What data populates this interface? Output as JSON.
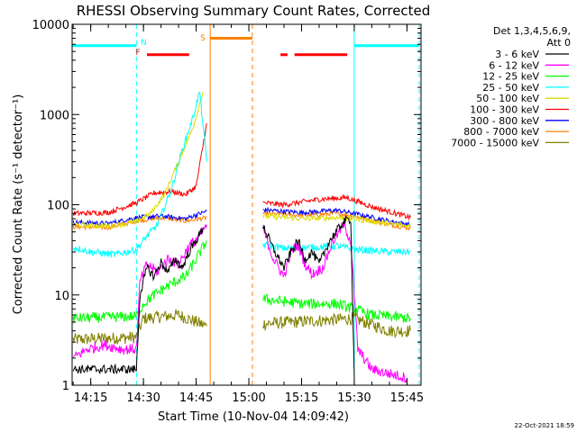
{
  "chart_data": {
    "type": "line",
    "title": "RHESSI Observing Summary Count Rates, Corrected",
    "xlabel": "Start Time (10-Nov-04 14:09:42)",
    "ylabel": "Corrected Count Rate (s⁻¹ detector⁻¹)",
    "y_scale": "log",
    "ylim": [
      1,
      10000
    ],
    "xlim": [
      "14:09:42",
      "15:49:00"
    ],
    "x_ticks": [
      "14:15",
      "14:30",
      "14:45",
      "15:00",
      "15:15",
      "15:30",
      "15:45"
    ],
    "y_ticks": [
      "1",
      "10",
      "100",
      "1000",
      "10000"
    ],
    "legend_title": [
      "Det 1,3,4,5,6,9,",
      "Att 0"
    ],
    "legend_position": "right",
    "footer_date": "22-Oct-2021 18:59",
    "colors": {
      "black": "#000000",
      "magenta": "#ff00ff",
      "green": "#00ff00",
      "cyan": "#00ffff",
      "yellow": "#dddd00",
      "red": "#ff0000",
      "blue": "#0000ff",
      "orange": "#ff7f00",
      "olive": "#808000",
      "gap": "#ff7f00",
      "night": "#00ffff",
      "saa": "#ff7f00",
      "flare": "#ff0000"
    },
    "annotations": [
      {
        "label": "N",
        "kind": "night",
        "color": "#00ffff",
        "x": "14:28:00"
      },
      {
        "label": "F",
        "kind": "flare",
        "color": "#ff0000",
        "x": "14:30:00"
      },
      {
        "label": "S",
        "kind": "saa",
        "color": "#ff7f00",
        "x": "14:49:00"
      }
    ],
    "flag_bars": [
      {
        "kind": "night",
        "color": "#00ffff",
        "y": 5800,
        "segments": [
          [
            "14:09:42",
            "14:28:00"
          ],
          [
            "15:30:00",
            "15:48:30"
          ]
        ]
      },
      {
        "kind": "flare",
        "color": "#ff0000",
        "y": 4600,
        "segments": [
          [
            "14:31:00",
            "14:43:00"
          ],
          [
            "15:09:00",
            "15:11:00"
          ],
          [
            "15:13:00",
            "15:28:00"
          ]
        ]
      },
      {
        "kind": "saa",
        "color": "#ff7f00",
        "y": 7000,
        "segments": [
          [
            "14:49:00",
            "15:01:00"
          ]
        ]
      }
    ],
    "vertical_markers": [
      {
        "x": "14:28:00",
        "color": "#00ffff",
        "style": "dashed"
      },
      {
        "x": "14:49:00",
        "color": "#ff7f00",
        "style": "solid"
      },
      {
        "x": "15:01:00",
        "color": "#ff7f00",
        "style": "dashed"
      },
      {
        "x": "15:30:00",
        "color": "#00ffff",
        "style": "solid"
      },
      {
        "x": "15:48:30",
        "color": "#00ffff",
        "style": "dashed"
      }
    ],
    "series": [
      {
        "name": "3 - 6 keV",
        "color": "#000000",
        "noise": 0.05,
        "segments": [
          [
            [
              "14:10:00",
              1.5
            ],
            [
              "14:28:00",
              1.5
            ],
            [
              "14:29:00",
              10
            ],
            [
              "14:31:00",
              20
            ],
            [
              "14:33:00",
              16
            ],
            [
              "14:35:00",
              23
            ],
            [
              "14:37:00",
              18
            ],
            [
              "14:39:00",
              25
            ],
            [
              "14:41:00",
              20
            ],
            [
              "14:43:00",
              30
            ],
            [
              "14:45:00",
              40
            ],
            [
              "14:47:00",
              55
            ]
          ],
          [
            [
              "15:04:00",
              60
            ],
            [
              "15:07:00",
              32
            ],
            [
              "15:10:00",
              20
            ],
            [
              "15:12:00",
              30
            ],
            [
              "15:14:00",
              40
            ],
            [
              "15:16:00",
              25
            ],
            [
              "15:18:00",
              30
            ],
            [
              "15:20:00",
              22
            ],
            [
              "15:23:00",
              40
            ],
            [
              "15:27:00",
              65
            ],
            [
              "15:29:00",
              70
            ],
            [
              "15:30:00",
              1.2
            ]
          ]
        ]
      },
      {
        "name": "6 - 12 keV",
        "color": "#ff00ff",
        "noise": 0.06,
        "segments": [
          [
            [
              "14:10:00",
              2
            ],
            [
              "14:14:00",
              2.5
            ],
            [
              "14:19:00",
              2.8
            ],
            [
              "14:24:00",
              2.5
            ],
            [
              "14:28:00",
              2.5
            ],
            [
              "14:29:00",
              14
            ],
            [
              "14:31:00",
              22
            ],
            [
              "14:34:00",
              18
            ],
            [
              "14:37:00",
              25
            ],
            [
              "14:40:00",
              22
            ],
            [
              "14:43:00",
              35
            ],
            [
              "14:46:00",
              45
            ],
            [
              "14:48:00",
              60
            ]
          ],
          [
            [
              "15:04:00",
              55
            ],
            [
              "15:07:00",
              25
            ],
            [
              "15:10:00",
              16
            ],
            [
              "15:12:00",
              30
            ],
            [
              "15:14:00",
              36
            ],
            [
              "15:16:00",
              22
            ],
            [
              "15:18:00",
              17
            ],
            [
              "15:21:00",
              20
            ],
            [
              "15:24:00",
              40
            ],
            [
              "15:27:00",
              60
            ],
            [
              "15:29:00",
              40
            ],
            [
              "15:31:00",
              2.5
            ],
            [
              "15:35:00",
              1.5
            ],
            [
              "15:45:00",
              1.2
            ]
          ]
        ]
      },
      {
        "name": "12 - 25 keV",
        "color": "#00ff00",
        "noise": 0.06,
        "segments": [
          [
            [
              "14:10:00",
              5.5
            ],
            [
              "14:28:00",
              5.8
            ],
            [
              "14:30:00",
              8
            ],
            [
              "14:33:00",
              10
            ],
            [
              "14:36:00",
              12
            ],
            [
              "14:39:00",
              14
            ],
            [
              "14:42:00",
              16
            ],
            [
              "14:45:00",
              25
            ],
            [
              "14:48:00",
              40
            ]
          ],
          [
            [
              "15:04:00",
              9
            ],
            [
              "15:15:00",
              8
            ],
            [
              "15:25:00",
              8
            ],
            [
              "15:30:00",
              7
            ],
            [
              "15:35:00",
              6
            ],
            [
              "15:46:00",
              5.5
            ]
          ]
        ]
      },
      {
        "name": "25 - 50 keV",
        "color": "#00ffff",
        "noise": 0.04,
        "segments": [
          [
            [
              "14:10:00",
              34
            ],
            [
              "14:15:00",
              30
            ],
            [
              "14:22:00",
              28
            ],
            [
              "14:28:00",
              32
            ],
            [
              "14:31:00",
              45
            ],
            [
              "14:34:00",
              60
            ],
            [
              "14:38:00",
              150
            ],
            [
              "14:41:00",
              400
            ],
            [
              "14:44:00",
              900
            ],
            [
              "14:46:00",
              1800
            ],
            [
              "14:48:00",
              300
            ]
          ],
          [
            [
              "15:04:00",
              36
            ],
            [
              "15:10:00",
              33
            ],
            [
              "15:20:00",
              34
            ],
            [
              "15:25:00",
              35
            ],
            [
              "15:30:00",
              32
            ],
            [
              "15:40:00",
              30
            ],
            [
              "15:46:00",
              30
            ]
          ]
        ]
      },
      {
        "name": "50 - 100 keV",
        "color": "#dddd00",
        "noise": 0.03,
        "segments": [
          [
            [
              "14:10:00",
              60
            ],
            [
              "14:20:00",
              58
            ],
            [
              "14:28:00",
              65
            ],
            [
              "14:32:00",
              80
            ],
            [
              "14:36:00",
              130
            ],
            [
              "14:40:00",
              300
            ],
            [
              "14:44:00",
              700
            ],
            [
              "14:47:00",
              1800
            ]
          ],
          [
            [
              "15:04:00",
              75
            ],
            [
              "15:15:00",
              70
            ],
            [
              "15:25:00",
              72
            ],
            [
              "15:30:00",
              70
            ],
            [
              "15:40:00",
              62
            ],
            [
              "15:46:00",
              58
            ]
          ]
        ]
      },
      {
        "name": "100 - 300 keV",
        "color": "#ff0000",
        "noise": 0.03,
        "segments": [
          [
            [
              "14:10:00",
              80
            ],
            [
              "14:20:00",
              82
            ],
            [
              "14:28:00",
              105
            ],
            [
              "14:33:00",
              135
            ],
            [
              "14:38:00",
              140
            ],
            [
              "14:42:00",
              130
            ],
            [
              "14:45:00",
              160
            ],
            [
              "14:48:00",
              800
            ]
          ],
          [
            [
              "15:04:00",
              105
            ],
            [
              "15:10:00",
              100
            ],
            [
              "15:20:00",
              115
            ],
            [
              "15:28:00",
              120
            ],
            [
              "15:35:00",
              95
            ],
            [
              "15:46:00",
              72
            ]
          ]
        ]
      },
      {
        "name": "300 - 800 keV",
        "color": "#0000ff",
        "noise": 0.025,
        "segments": [
          [
            [
              "14:10:00",
              64
            ],
            [
              "14:20:00",
              62
            ],
            [
              "14:28:00",
              72
            ],
            [
              "14:35:00",
              75
            ],
            [
              "14:42:00",
              70
            ],
            [
              "14:48:00",
              85
            ]
          ],
          [
            [
              "15:04:00",
              88
            ],
            [
              "15:15:00",
              82
            ],
            [
              "15:25:00",
              87
            ],
            [
              "15:30:00",
              80
            ],
            [
              "15:40:00",
              66
            ],
            [
              "15:46:00",
              60
            ]
          ]
        ]
      },
      {
        "name": "800 - 7000 keV",
        "color": "#ff7f00",
        "noise": 0.025,
        "segments": [
          [
            [
              "14:10:00",
              57
            ],
            [
              "14:20:00",
              56
            ],
            [
              "14:28:00",
              66
            ],
            [
              "14:35:00",
              72
            ],
            [
              "14:42:00",
              66
            ],
            [
              "14:48:00",
              72
            ]
          ],
          [
            [
              "15:04:00",
              80
            ],
            [
              "15:15:00",
              76
            ],
            [
              "15:25:00",
              80
            ],
            [
              "15:30:00",
              75
            ],
            [
              "15:40:00",
              60
            ],
            [
              "15:46:00",
              55
            ]
          ]
        ]
      },
      {
        "name": "7000 - 15000 keV",
        "color": "#808000",
        "noise": 0.07,
        "segments": [
          [
            [
              "14:10:00",
              3.2
            ],
            [
              "14:28:00",
              3.4
            ],
            [
              "14:30:00",
              5.5
            ],
            [
              "14:40:00",
              6
            ],
            [
              "14:48:00",
              4.5
            ]
          ],
          [
            [
              "15:04:00",
              4.8
            ],
            [
              "15:20:00",
              5.2
            ],
            [
              "15:30:00",
              5.5
            ],
            [
              "15:40:00",
              4
            ],
            [
              "15:46:00",
              4
            ]
          ]
        ]
      }
    ]
  }
}
